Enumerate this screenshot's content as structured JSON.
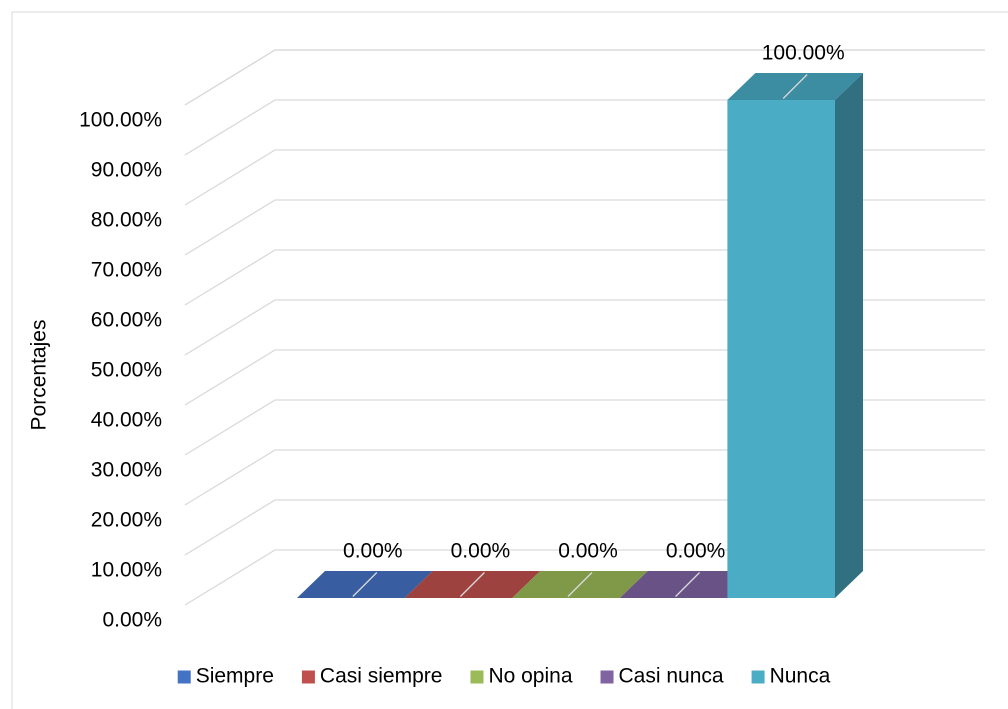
{
  "chart_data": {
    "type": "bar3d",
    "y_axis_label": "Porcentajes",
    "series": [
      {
        "name": "Siempre",
        "color": "#4472c4",
        "values": [
          0
        ],
        "value_labels": [
          "0.00%"
        ]
      },
      {
        "name": "Casi siempre",
        "color": "#c0504d",
        "values": [
          0
        ],
        "value_labels": [
          "0.00%"
        ]
      },
      {
        "name": "No opina",
        "color": "#9bbb59",
        "values": [
          0
        ],
        "value_labels": [
          "0.00%"
        ]
      },
      {
        "name": "Casi nunca",
        "color": "#8064a2",
        "values": [
          0
        ],
        "value_labels": [
          "0.00%"
        ]
      },
      {
        "name": "Nunca",
        "color": "#4bacc6",
        "values": [
          100
        ],
        "value_labels": [
          "100.00%"
        ]
      }
    ],
    "ylim": [
      0,
      100
    ],
    "yticks": [
      {
        "value": 0,
        "label": "0.00%"
      },
      {
        "value": 10,
        "label": "10.00%"
      },
      {
        "value": 20,
        "label": "20.00%"
      },
      {
        "value": 30,
        "label": "30.00%"
      },
      {
        "value": 40,
        "label": "40.00%"
      },
      {
        "value": 50,
        "label": "50.00%"
      },
      {
        "value": 60,
        "label": "60.00%"
      },
      {
        "value": 70,
        "label": "70.00%"
      },
      {
        "value": 80,
        "label": "80.00%"
      },
      {
        "value": 90,
        "label": "90.00%"
      },
      {
        "value": 100,
        "label": "100.00%"
      }
    ],
    "grid": true,
    "legend": "bottom"
  }
}
